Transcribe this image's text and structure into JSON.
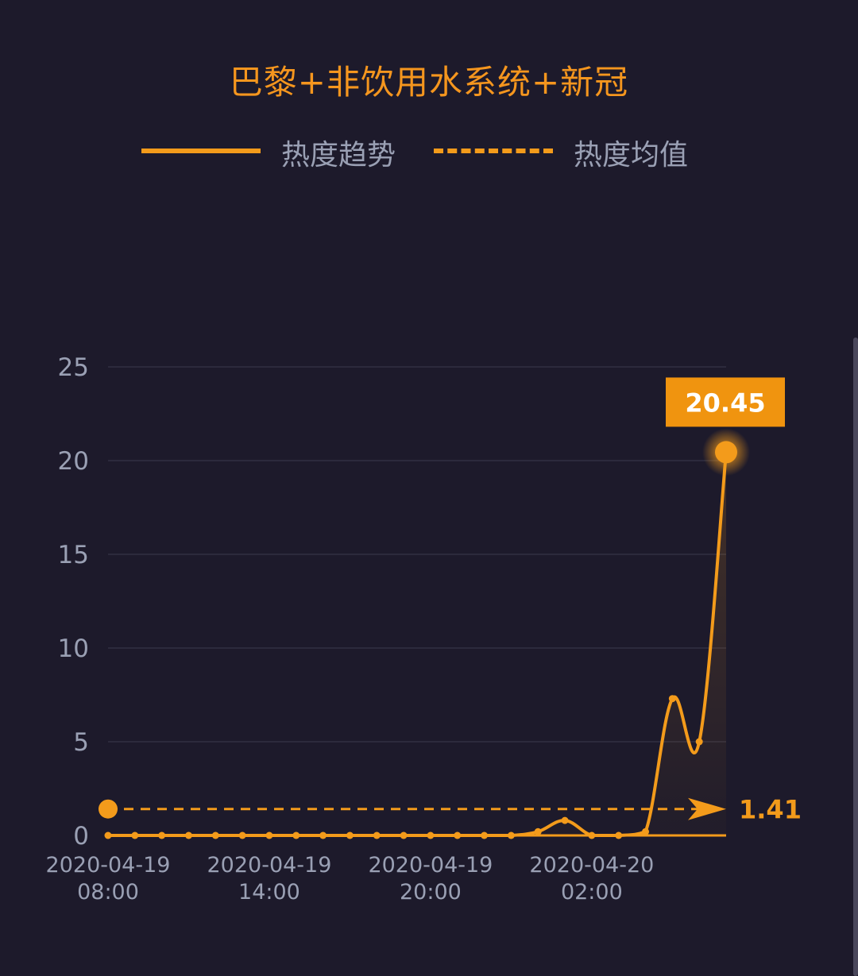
{
  "chart_data": {
    "type": "line",
    "title": "巴黎+非饮用水系统+新冠",
    "legend": [
      {
        "label": "热度趋势",
        "style": "solid"
      },
      {
        "label": "热度均值",
        "style": "dashed"
      }
    ],
    "x_labels": [
      {
        "index": 0,
        "date": "2020-04-19",
        "time": "08:00"
      },
      {
        "index": 6,
        "date": "2020-04-19",
        "time": "14:00"
      },
      {
        "index": 12,
        "date": "2020-04-19",
        "time": "20:00"
      },
      {
        "index": 18,
        "date": "2020-04-20",
        "time": "02:00"
      }
    ],
    "series": [
      {
        "values": [
          0,
          0,
          0,
          0,
          0,
          0,
          0,
          0,
          0,
          0,
          0,
          0,
          0,
          0,
          0,
          0,
          0.2,
          0.8,
          0,
          0,
          0.2,
          7.3,
          5.0,
          20.45
        ]
      }
    ],
    "mean": 1.41,
    "mean_label": "1.41",
    "peak_label": "20.45",
    "yticks": [
      "0",
      "5",
      "10",
      "15",
      "20",
      "25"
    ],
    "ylim": [
      0,
      25
    ],
    "grid": true,
    "colors": {
      "line": "#f39b1b",
      "accent": "#f5961e",
      "text": "#9aa0b4",
      "grid": "#2c2a3c"
    }
  }
}
